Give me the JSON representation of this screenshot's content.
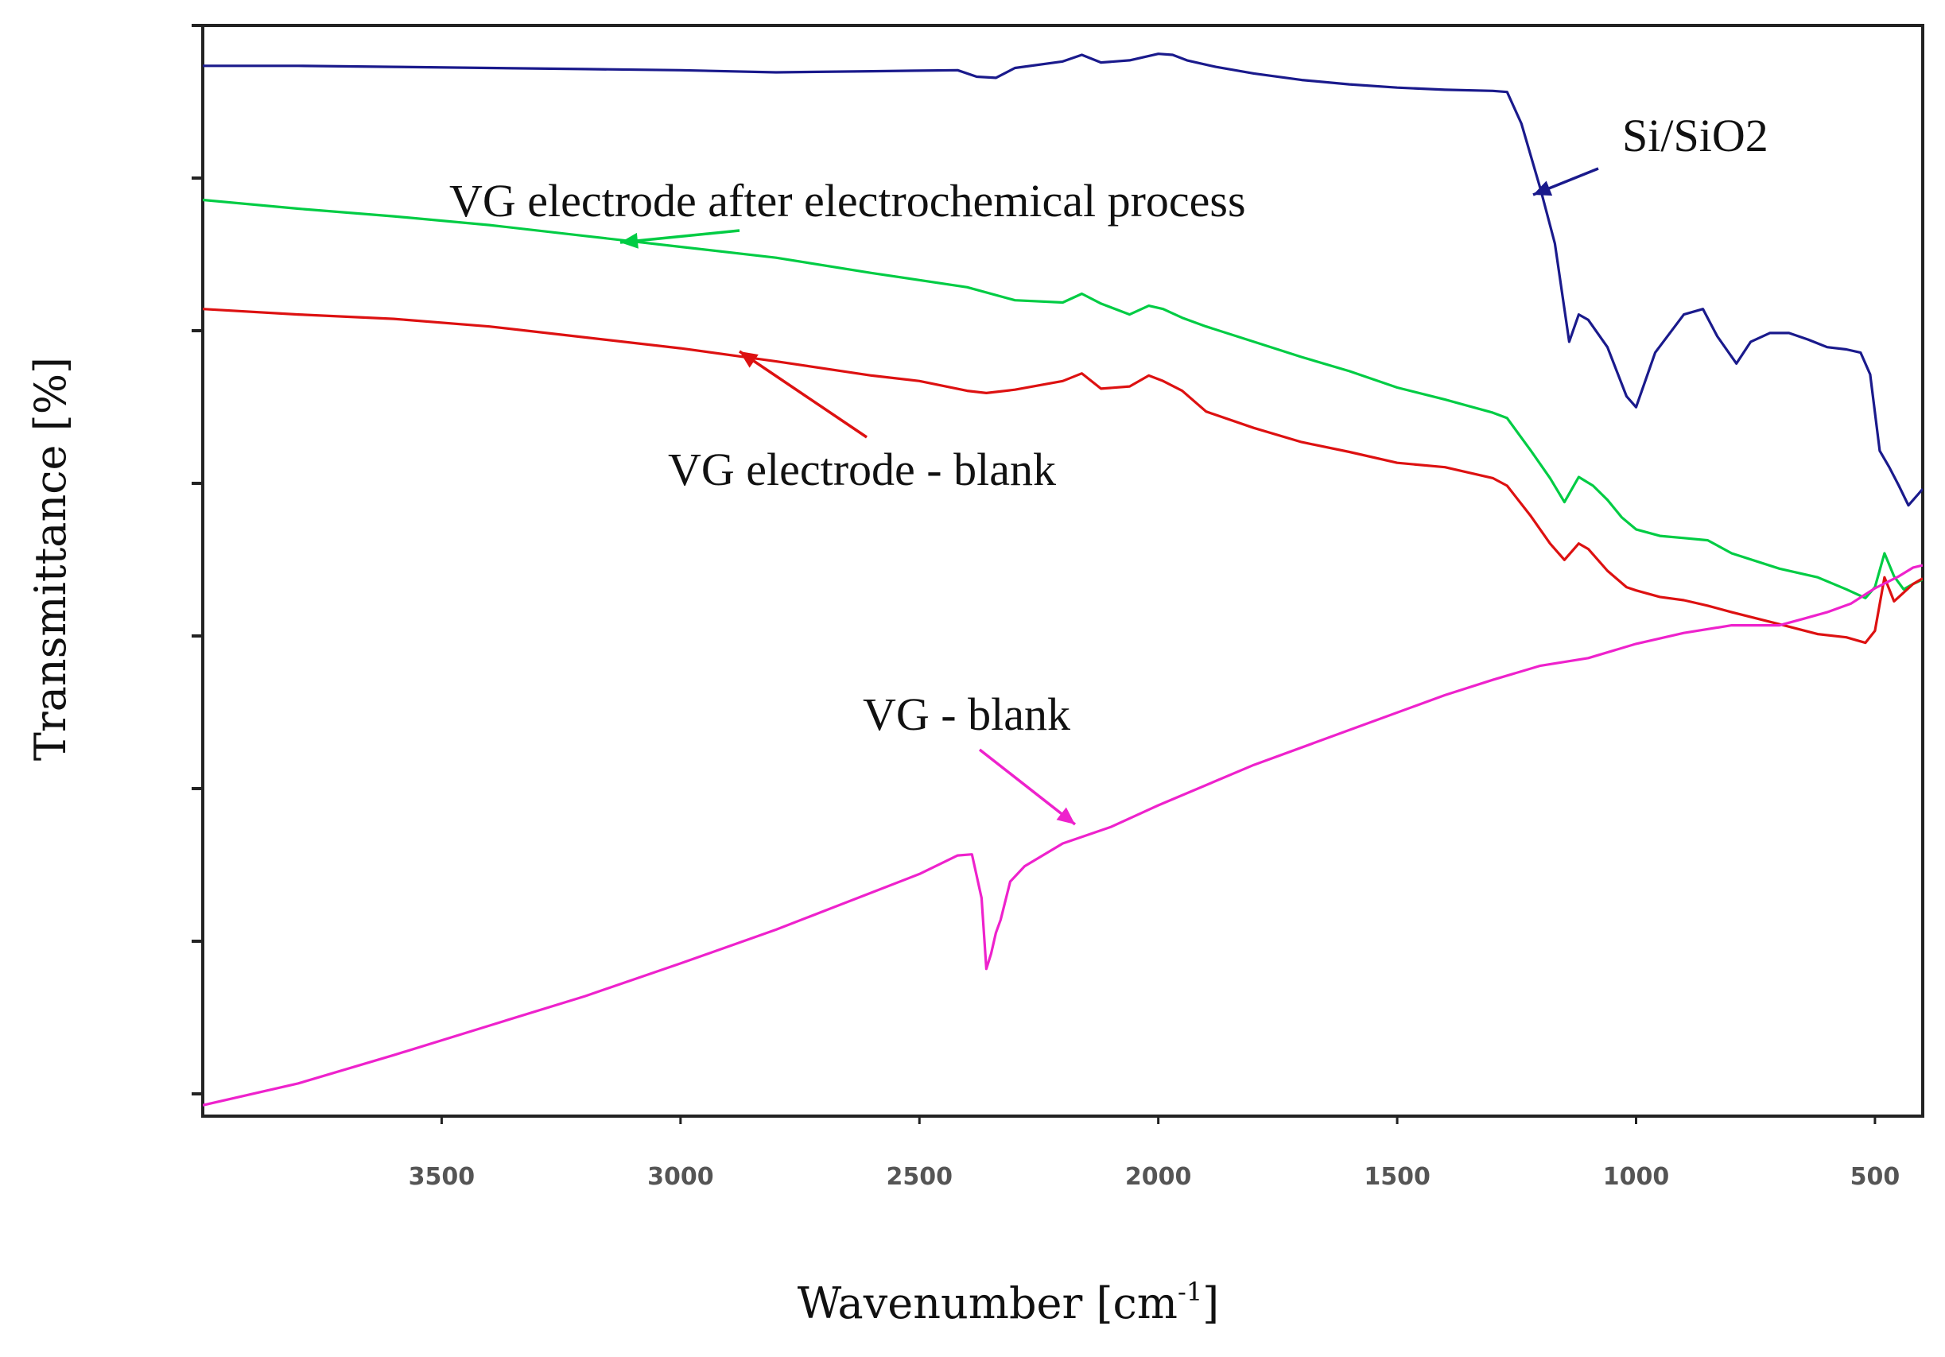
{
  "chart_data": {
    "type": "line",
    "xlabel": "Wavenumber [cm",
    "xlabel_sup": "-1",
    "xlabel_close": "]",
    "ylabel": "Transmittance [%]",
    "xlim": [
      4000,
      400
    ],
    "x_reversed": true,
    "ylim": [
      0,
      100
    ],
    "y_tick_labels_shown": false,
    "x_ticks": [
      3500,
      3000,
      2500,
      2000,
      1500,
      1000,
      500
    ],
    "x_tick_labels": [
      "3500",
      "3000",
      "2500",
      "2000",
      "1500",
      "1000",
      "500"
    ],
    "grid": false,
    "series": [
      {
        "name": "Si/SiO2",
        "color": "#1a1a8c",
        "points": [
          [
            4000,
            96.3
          ],
          [
            3800,
            96.3
          ],
          [
            3600,
            96.2
          ],
          [
            3400,
            96.1
          ],
          [
            3200,
            96.0
          ],
          [
            3000,
            95.9
          ],
          [
            2800,
            95.7
          ],
          [
            2600,
            95.8
          ],
          [
            2420,
            95.9
          ],
          [
            2380,
            95.3
          ],
          [
            2340,
            95.2
          ],
          [
            2300,
            96.1
          ],
          [
            2200,
            96.7
          ],
          [
            2160,
            97.3
          ],
          [
            2120,
            96.6
          ],
          [
            2060,
            96.8
          ],
          [
            2000,
            97.4
          ],
          [
            1970,
            97.3
          ],
          [
            1940,
            96.8
          ],
          [
            1880,
            96.2
          ],
          [
            1800,
            95.6
          ],
          [
            1700,
            95.0
          ],
          [
            1600,
            94.6
          ],
          [
            1500,
            94.3
          ],
          [
            1400,
            94.1
          ],
          [
            1300,
            94.0
          ],
          [
            1270,
            93.9
          ],
          [
            1240,
            91.0
          ],
          [
            1200,
            85.0
          ],
          [
            1170,
            80.0
          ],
          [
            1140,
            71.0
          ],
          [
            1120,
            73.5
          ],
          [
            1100,
            73.0
          ],
          [
            1060,
            70.5
          ],
          [
            1020,
            66.0
          ],
          [
            1000,
            65.0
          ],
          [
            960,
            70.0
          ],
          [
            900,
            73.5
          ],
          [
            860,
            74.0
          ],
          [
            830,
            71.5
          ],
          [
            790,
            69.0
          ],
          [
            760,
            71.0
          ],
          [
            720,
            71.8
          ],
          [
            680,
            71.8
          ],
          [
            640,
            71.2
          ],
          [
            600,
            70.5
          ],
          [
            560,
            70.3
          ],
          [
            530,
            70.0
          ],
          [
            510,
            68.0
          ],
          [
            490,
            61.0
          ],
          [
            470,
            59.5
          ],
          [
            450,
            57.8
          ],
          [
            430,
            56.0
          ],
          [
            410,
            57.0
          ],
          [
            400,
            57.5
          ]
        ]
      },
      {
        "name": "VG electrode after electrochemical process",
        "color": "#00cc44",
        "points": [
          [
            4000,
            84.0
          ],
          [
            3800,
            83.2
          ],
          [
            3600,
            82.5
          ],
          [
            3400,
            81.7
          ],
          [
            3200,
            80.7
          ],
          [
            3000,
            79.7
          ],
          [
            2800,
            78.7
          ],
          [
            2600,
            77.3
          ],
          [
            2400,
            76.0
          ],
          [
            2300,
            74.8
          ],
          [
            2200,
            74.6
          ],
          [
            2160,
            75.4
          ],
          [
            2120,
            74.5
          ],
          [
            2060,
            73.5
          ],
          [
            2020,
            74.3
          ],
          [
            1990,
            74.0
          ],
          [
            1950,
            73.2
          ],
          [
            1900,
            72.4
          ],
          [
            1800,
            71.0
          ],
          [
            1700,
            69.6
          ],
          [
            1600,
            68.3
          ],
          [
            1500,
            66.8
          ],
          [
            1400,
            65.7
          ],
          [
            1300,
            64.5
          ],
          [
            1270,
            64.0
          ],
          [
            1220,
            61.0
          ],
          [
            1180,
            58.5
          ],
          [
            1150,
            56.3
          ],
          [
            1120,
            58.6
          ],
          [
            1090,
            57.8
          ],
          [
            1060,
            56.5
          ],
          [
            1030,
            54.9
          ],
          [
            1000,
            53.8
          ],
          [
            950,
            53.2
          ],
          [
            900,
            53.0
          ],
          [
            850,
            52.8
          ],
          [
            800,
            51.6
          ],
          [
            700,
            50.2
          ],
          [
            620,
            49.4
          ],
          [
            560,
            48.3
          ],
          [
            520,
            47.5
          ],
          [
            500,
            48.5
          ],
          [
            480,
            51.6
          ],
          [
            460,
            49.5
          ],
          [
            440,
            48.3
          ],
          [
            420,
            48.8
          ],
          [
            400,
            49.2
          ]
        ]
      },
      {
        "name": "VG electrode - blank",
        "color": "#dd1111",
        "points": [
          [
            4000,
            74.0
          ],
          [
            3800,
            73.5
          ],
          [
            3600,
            73.1
          ],
          [
            3400,
            72.4
          ],
          [
            3200,
            71.4
          ],
          [
            3000,
            70.4
          ],
          [
            2800,
            69.2
          ],
          [
            2600,
            67.9
          ],
          [
            2500,
            67.4
          ],
          [
            2400,
            66.5
          ],
          [
            2360,
            66.3
          ],
          [
            2300,
            66.6
          ],
          [
            2200,
            67.4
          ],
          [
            2160,
            68.1
          ],
          [
            2120,
            66.7
          ],
          [
            2060,
            66.9
          ],
          [
            2020,
            67.9
          ],
          [
            1990,
            67.4
          ],
          [
            1950,
            66.5
          ],
          [
            1900,
            64.6
          ],
          [
            1800,
            63.1
          ],
          [
            1700,
            61.8
          ],
          [
            1600,
            60.9
          ],
          [
            1500,
            59.9
          ],
          [
            1400,
            59.5
          ],
          [
            1300,
            58.5
          ],
          [
            1270,
            57.8
          ],
          [
            1220,
            55.0
          ],
          [
            1180,
            52.5
          ],
          [
            1150,
            51.0
          ],
          [
            1120,
            52.5
          ],
          [
            1100,
            52.0
          ],
          [
            1060,
            50.0
          ],
          [
            1020,
            48.5
          ],
          [
            1000,
            48.2
          ],
          [
            950,
            47.6
          ],
          [
            900,
            47.3
          ],
          [
            850,
            46.8
          ],
          [
            800,
            46.2
          ],
          [
            700,
            45.1
          ],
          [
            620,
            44.2
          ],
          [
            560,
            43.9
          ],
          [
            520,
            43.4
          ],
          [
            500,
            44.5
          ],
          [
            480,
            49.4
          ],
          [
            460,
            47.2
          ],
          [
            440,
            48.0
          ],
          [
            420,
            48.8
          ],
          [
            400,
            49.3
          ]
        ]
      },
      {
        "name": "VG - blank",
        "color": "#ee22cc",
        "points": [
          [
            4000,
            1.0
          ],
          [
            3800,
            3.0
          ],
          [
            3600,
            5.6
          ],
          [
            3400,
            8.3
          ],
          [
            3200,
            11.0
          ],
          [
            3000,
            14.0
          ],
          [
            2800,
            17.1
          ],
          [
            2600,
            20.5
          ],
          [
            2500,
            22.2
          ],
          [
            2420,
            23.9
          ],
          [
            2390,
            24.0
          ],
          [
            2370,
            20.0
          ],
          [
            2360,
            13.5
          ],
          [
            2350,
            14.9
          ],
          [
            2340,
            16.8
          ],
          [
            2330,
            18.0
          ],
          [
            2310,
            21.5
          ],
          [
            2280,
            22.9
          ],
          [
            2200,
            25.0
          ],
          [
            2100,
            26.5
          ],
          [
            2000,
            28.5
          ],
          [
            1800,
            32.2
          ],
          [
            1600,
            35.4
          ],
          [
            1400,
            38.6
          ],
          [
            1300,
            40.0
          ],
          [
            1200,
            41.3
          ],
          [
            1100,
            42.0
          ],
          [
            1000,
            43.3
          ],
          [
            900,
            44.3
          ],
          [
            800,
            45.0
          ],
          [
            700,
            45.0
          ],
          [
            650,
            45.6
          ],
          [
            600,
            46.2
          ],
          [
            550,
            47.0
          ],
          [
            500,
            48.4
          ],
          [
            450,
            49.5
          ],
          [
            420,
            50.3
          ],
          [
            400,
            50.5
          ]
        ]
      }
    ],
    "annotations": [
      {
        "text": "Si/SiO2",
        "color": "#111111"
      },
      {
        "text": "VG electrode after electrochemical process",
        "color": "#111111"
      },
      {
        "text": "VG electrode - blank",
        "color": "#111111"
      },
      {
        "text": "VG - blank",
        "color": "#111111"
      }
    ]
  }
}
